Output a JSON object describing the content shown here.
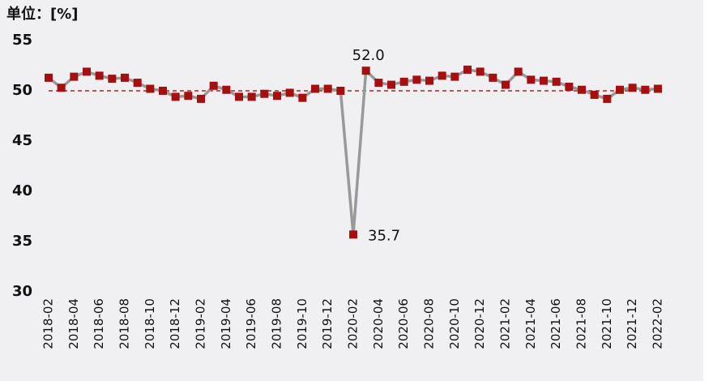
{
  "chart_data": {
    "type": "line",
    "unit_label": "单位：[%]",
    "categories": [
      "2018-02",
      null,
      "2018-04",
      null,
      "2018-06",
      null,
      "2018-08",
      null,
      "2018-10",
      null,
      "2018-12",
      null,
      "2019-02",
      null,
      "2019-04",
      null,
      "2019-06",
      null,
      "2019-08",
      null,
      "2019-10",
      null,
      "2019-12",
      null,
      "2020-02",
      null,
      "2020-04",
      null,
      "2020-06",
      null,
      "2020-08",
      null,
      "2020-10",
      null,
      "2020-12",
      null,
      "2021-02",
      null,
      "2021-04",
      null,
      "2021-06",
      null,
      "2021-08",
      null,
      "2021-10",
      null,
      "2021-12",
      null,
      "2022-02"
    ],
    "values": [
      51.3,
      50.3,
      51.4,
      51.9,
      51.5,
      51.2,
      51.3,
      50.8,
      50.2,
      50.0,
      49.4,
      49.5,
      49.2,
      50.5,
      50.1,
      49.4,
      49.4,
      49.7,
      49.5,
      49.8,
      49.3,
      50.2,
      50.2,
      50.0,
      35.7,
      52.0,
      50.8,
      50.6,
      50.9,
      51.1,
      51.0,
      51.5,
      51.4,
      52.1,
      51.9,
      51.3,
      50.6,
      51.9,
      51.1,
      51.0,
      50.9,
      50.4,
      50.1,
      49.6,
      49.2,
      50.1,
      50.3,
      50.1,
      50.2
    ],
    "value_labels": [
      null,
      null,
      null,
      null,
      null,
      null,
      null,
      null,
      null,
      null,
      null,
      null,
      null,
      null,
      null,
      null,
      null,
      null,
      null,
      null,
      null,
      null,
      null,
      null,
      "35.7",
      "52.0",
      null,
      null,
      null,
      null,
      null,
      null,
      null,
      null,
      null,
      null,
      null,
      null,
      null,
      null,
      null,
      null,
      null,
      null,
      null,
      null,
      null,
      null,
      null
    ],
    "line_color": "#999999",
    "marker_color": "#a50f0f",
    "reference_line": 50,
    "reference_color": "#b22222",
    "ylim": [
      30,
      55
    ],
    "yticks": [
      30,
      35,
      40,
      45,
      50,
      55
    ]
  }
}
